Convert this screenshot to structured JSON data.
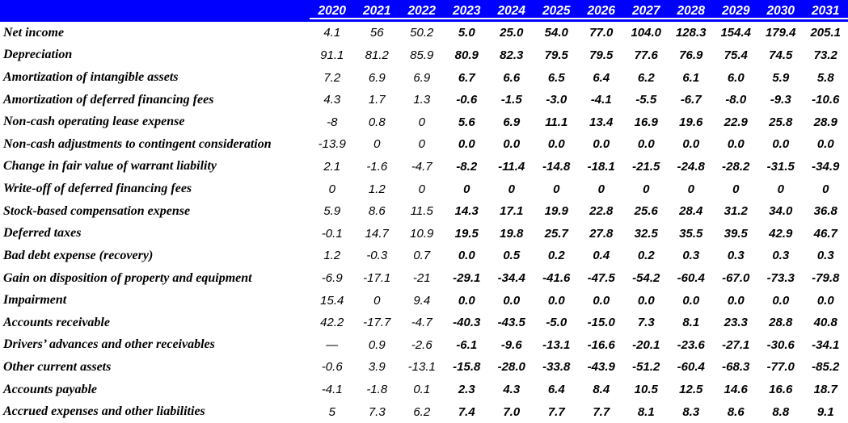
{
  "table": {
    "corner_label": "",
    "years": [
      "2020",
      "2021",
      "2022",
      "2023",
      "2024",
      "2025",
      "2026",
      "2027",
      "2028",
      "2029",
      "2030",
      "2031"
    ],
    "historical_year_count": 3,
    "rows": [
      {
        "label": "Net income",
        "values": [
          "4.1",
          "56",
          "50.2",
          "5.0",
          "25.0",
          "54.0",
          "77.0",
          "104.0",
          "128.3",
          "154.4",
          "179.4",
          "205.1"
        ]
      },
      {
        "label": "Depreciation",
        "values": [
          "91.1",
          "81.2",
          "85.9",
          "80.9",
          "82.3",
          "79.5",
          "79.5",
          "77.6",
          "76.9",
          "75.4",
          "74.5",
          "73.2"
        ]
      },
      {
        "label": "Amortization of intangible assets",
        "values": [
          "7.2",
          "6.9",
          "6.9",
          "6.7",
          "6.6",
          "6.5",
          "6.4",
          "6.2",
          "6.1",
          "6.0",
          "5.9",
          "5.8"
        ]
      },
      {
        "label": "Amortization of deferred financing fees",
        "values": [
          "4.3",
          "1.7",
          "1.3",
          "-0.6",
          "-1.5",
          "-3.0",
          "-4.1",
          "-5.5",
          "-6.7",
          "-8.0",
          "-9.3",
          "-10.6"
        ]
      },
      {
        "label": "Non-cash operating lease expense",
        "values": [
          "-8",
          "0.8",
          "0",
          "5.6",
          "6.9",
          "11.1",
          "13.4",
          "16.9",
          "19.6",
          "22.9",
          "25.8",
          "28.9"
        ]
      },
      {
        "label": "Non-cash adjustments to contingent consideration",
        "values": [
          "-13.9",
          "0",
          "0",
          "0.0",
          "0.0",
          "0.0",
          "0.0",
          "0.0",
          "0.0",
          "0.0",
          "0.0",
          "0.0"
        ]
      },
      {
        "label": "Change in fair value of warrant liability",
        "values": [
          "2.1",
          "-1.6",
          "-4.7",
          "-8.2",
          "-11.4",
          "-14.8",
          "-18.1",
          "-21.5",
          "-24.8",
          "-28.2",
          "-31.5",
          "-34.9"
        ]
      },
      {
        "label": "Write-off of deferred financing fees",
        "values": [
          "0",
          "1.2",
          "0",
          "0",
          "0",
          "0",
          "0",
          "0",
          "0",
          "0",
          "0",
          "0"
        ]
      },
      {
        "label": "Stock-based compensation expense",
        "values": [
          "5.9",
          "8.6",
          "11.5",
          "14.3",
          "17.1",
          "19.9",
          "22.8",
          "25.6",
          "28.4",
          "31.2",
          "34.0",
          "36.8"
        ]
      },
      {
        "label": "Deferred taxes",
        "values": [
          "-0.1",
          "14.7",
          "10.9",
          "19.5",
          "19.8",
          "25.7",
          "27.8",
          "32.5",
          "35.5",
          "39.5",
          "42.9",
          "46.7"
        ]
      },
      {
        "label": "Bad debt expense (recovery)",
        "values": [
          "1.2",
          "-0.3",
          "0.7",
          "0.0",
          "0.5",
          "0.2",
          "0.4",
          "0.2",
          "0.3",
          "0.3",
          "0.3",
          "0.3"
        ]
      },
      {
        "label": "Gain on disposition of property and equipment",
        "values": [
          "-6.9",
          "-17.1",
          "-21",
          "-29.1",
          "-34.4",
          "-41.6",
          "-47.5",
          "-54.2",
          "-60.4",
          "-67.0",
          "-73.3",
          "-79.8"
        ]
      },
      {
        "label": "Impairment",
        "values": [
          "15.4",
          "0",
          "9.4",
          "0.0",
          "0.0",
          "0.0",
          "0.0",
          "0.0",
          "0.0",
          "0.0",
          "0.0",
          "0.0"
        ]
      },
      {
        "label": "Accounts receivable",
        "values": [
          "42.2",
          "-17.7",
          "-4.7",
          "-40.3",
          "-43.5",
          "-5.0",
          "-15.0",
          "7.3",
          "8.1",
          "23.3",
          "28.8",
          "40.8"
        ]
      },
      {
        "label": "Drivers’ advances and other receivables",
        "values": [
          "—",
          "0.9",
          "-2.6",
          "-6.1",
          "-9.6",
          "-13.1",
          "-16.6",
          "-20.1",
          "-23.6",
          "-27.1",
          "-30.6",
          "-34.1"
        ]
      },
      {
        "label": "Other current assets",
        "values": [
          "-0.6",
          "3.9",
          "-13.1",
          "-15.8",
          "-28.0",
          "-33.8",
          "-43.9",
          "-51.2",
          "-60.4",
          "-68.3",
          "-77.0",
          "-85.2"
        ]
      },
      {
        "label": "Accounts payable",
        "values": [
          "-4.1",
          "-1.8",
          "0.1",
          "2.3",
          "4.3",
          "6.4",
          "8.4",
          "10.5",
          "12.5",
          "14.6",
          "16.6",
          "18.7"
        ]
      },
      {
        "label": "Accrued expenses and other liabilities",
        "values": [
          "5",
          "7.3",
          "6.2",
          "7.4",
          "7.0",
          "7.7",
          "7.7",
          "8.1",
          "8.3",
          "8.6",
          "8.8",
          "9.1"
        ]
      }
    ]
  },
  "colors": {
    "header_bg": "#0000FF",
    "header_text": "#FFFFFF",
    "header_underline": "#FFFFFF",
    "body_text": "#000000"
  }
}
